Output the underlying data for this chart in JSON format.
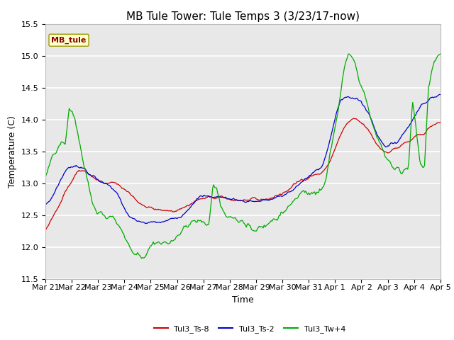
{
  "title": "MB Tule Tower: Tule Temps 3 (3/23/17-now)",
  "xlabel": "Time",
  "ylabel": "Temperature (C)",
  "ylim": [
    11.5,
    15.5
  ],
  "yticks": [
    11.5,
    12.0,
    12.5,
    13.0,
    13.5,
    14.0,
    14.5,
    15.0,
    15.5
  ],
  "xtick_labels": [
    "Mar 21",
    "Mar 22",
    "Mar 23",
    "Mar 24",
    "Mar 25",
    "Mar 26",
    "Mar 27",
    "Mar 28",
    "Mar 29",
    "Mar 30",
    "Mar 31",
    "Apr 1",
    "Apr 2",
    "Apr 3",
    "Apr 4",
    "Apr 5"
  ],
  "legend_label_box": "MB_tule",
  "legend_series": [
    "Tul3_Ts-8",
    "Tul3_Ts-2",
    "Tul3_Tw+4"
  ],
  "legend_colors": [
    "#cc0000",
    "#0000cc",
    "#00aa00"
  ],
  "line_colors": [
    "#cc0000",
    "#0000cc",
    "#00aa00"
  ],
  "bg_color": "#e8e8e8",
  "fig_color": "#ffffff",
  "title_fontsize": 11,
  "axis_fontsize": 9,
  "tick_fontsize": 8,
  "red_base": [
    12.25,
    12.35,
    12.48,
    12.62,
    12.75,
    12.88,
    12.98,
    13.08,
    13.18,
    13.22,
    13.2,
    13.15,
    13.1,
    13.05,
    13.02,
    13.0,
    13.0,
    13.0,
    12.98,
    12.95,
    12.9,
    12.85,
    12.78,
    12.72,
    12.68,
    12.65,
    12.62,
    12.6,
    12.58,
    12.57,
    12.56,
    12.56,
    12.57,
    12.58,
    12.6,
    12.63,
    12.66,
    12.7,
    12.73,
    12.75,
    12.76,
    12.77,
    12.77,
    12.77,
    12.77,
    12.76,
    12.75,
    12.74,
    12.74,
    12.73,
    12.73,
    12.73,
    12.73,
    12.73,
    12.74,
    12.75,
    12.76,
    12.78,
    12.8,
    12.83,
    12.86,
    12.9,
    12.95,
    13.0,
    13.05,
    13.08,
    13.1,
    13.12,
    13.14,
    13.15,
    13.2,
    13.3,
    13.45,
    13.6,
    13.75,
    13.88,
    13.95,
    14.0,
    13.98,
    13.95,
    13.9,
    13.82,
    13.72,
    13.62,
    13.55,
    13.5,
    13.5,
    13.52,
    13.55,
    13.58,
    13.62,
    13.65,
    13.68,
    13.72,
    13.76,
    13.8,
    13.85,
    13.9,
    13.93,
    13.95
  ],
  "blue_base": [
    12.65,
    12.72,
    12.82,
    12.95,
    13.08,
    13.18,
    13.25,
    13.28,
    13.28,
    13.25,
    13.2,
    13.15,
    13.1,
    13.05,
    13.02,
    13.0,
    12.98,
    12.92,
    12.82,
    12.7,
    12.58,
    12.48,
    12.42,
    12.4,
    12.38,
    12.38,
    12.38,
    12.38,
    12.38,
    12.39,
    12.4,
    12.42,
    12.44,
    12.47,
    12.5,
    12.55,
    12.62,
    12.7,
    12.75,
    12.78,
    12.79,
    12.79,
    12.79,
    12.79,
    12.78,
    12.77,
    12.76,
    12.75,
    12.74,
    12.73,
    12.72,
    12.72,
    12.72,
    12.72,
    12.72,
    12.73,
    12.74,
    12.75,
    12.77,
    12.79,
    12.82,
    12.86,
    12.9,
    12.95,
    13.0,
    13.05,
    13.1,
    13.15,
    13.2,
    13.25,
    13.4,
    13.6,
    13.85,
    14.1,
    14.28,
    14.35,
    14.35,
    14.35,
    14.32,
    14.28,
    14.2,
    14.1,
    13.95,
    13.8,
    13.68,
    13.6,
    13.58,
    13.6,
    13.65,
    13.72,
    13.8,
    13.9,
    14.0,
    14.1,
    14.2,
    14.28,
    14.32,
    14.35,
    14.36,
    14.37
  ],
  "green_base": [
    13.1,
    13.25,
    13.42,
    13.55,
    13.6,
    13.6,
    14.2,
    14.1,
    13.8,
    13.5,
    13.2,
    12.9,
    12.65,
    12.52,
    12.5,
    12.5,
    12.48,
    12.45,
    12.38,
    12.28,
    12.15,
    12.02,
    11.92,
    11.85,
    11.85,
    11.88,
    12.0,
    12.1,
    12.08,
    12.05,
    12.05,
    12.08,
    12.12,
    12.18,
    12.25,
    12.32,
    12.38,
    12.4,
    12.4,
    12.4,
    12.38,
    12.35,
    13.0,
    12.9,
    12.62,
    12.52,
    12.48,
    12.45,
    12.42,
    12.4,
    12.35,
    12.32,
    12.3,
    12.3,
    12.32,
    12.35,
    12.38,
    12.42,
    12.47,
    12.52,
    12.58,
    12.65,
    12.72,
    12.78,
    12.82,
    12.85,
    12.85,
    12.85,
    12.85,
    12.85,
    13.0,
    13.3,
    13.65,
    14.0,
    14.4,
    14.8,
    15.05,
    14.95,
    14.75,
    14.55,
    14.35,
    14.15,
    13.95,
    13.75,
    13.58,
    13.45,
    13.35,
    13.28,
    13.22,
    13.18,
    13.2,
    13.25,
    14.3,
    13.85,
    13.3,
    13.25,
    14.5,
    14.8,
    14.95,
    15.0
  ]
}
